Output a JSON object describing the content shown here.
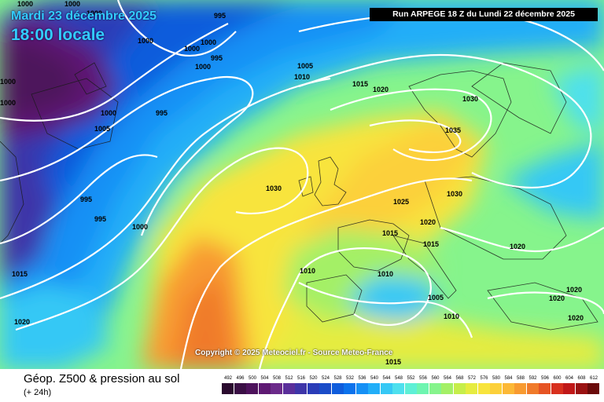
{
  "title": {
    "date": "Mardi 23 décembre 2025",
    "time": "18:00 locale"
  },
  "run_info": "Run ARPEGE 18 Z du Lundi 22 décembre 2025",
  "copyright": "Copyright © 2025 Meteociel.fr - Source Meteo-France",
  "footer": {
    "title": "Géop. Z500 & pression au sol",
    "subtitle": "(+ 24h)"
  },
  "scale": {
    "values": [
      "492",
      "496",
      "500",
      "504",
      "508",
      "512",
      "516",
      "520",
      "524",
      "528",
      "532",
      "536",
      "540",
      "544",
      "548",
      "552",
      "556",
      "560",
      "564",
      "568",
      "572",
      "576",
      "580",
      "584",
      "588",
      "592",
      "596",
      "600",
      "604",
      "608",
      "612"
    ],
    "colors": [
      "#2a0a2e",
      "#3a0f45",
      "#4d125c",
      "#5e1973",
      "#6b2a8a",
      "#5a2e9a",
      "#3e35a8",
      "#2a3cb8",
      "#1a4cc8",
      "#0f5cdc",
      "#0c72ec",
      "#1590f5",
      "#22aef8",
      "#36c8f5",
      "#4ee0ee",
      "#5ef0d6",
      "#6ef5b0",
      "#86f48c",
      "#a4f066",
      "#c6ee4a",
      "#e6ec40",
      "#f8e43c",
      "#fcd03a",
      "#fcb836",
      "#f89a30",
      "#f07a2a",
      "#e65424",
      "#d8301e",
      "#c01818",
      "#9a1212",
      "#6a0a0a"
    ]
  },
  "pressure_labels": [
    "1000",
    "1000",
    "995",
    "1000",
    "1000",
    "995",
    "1000",
    "1000",
    "1000",
    "1000",
    "1000",
    "1005",
    "1000",
    "995",
    "1005",
    "1010",
    "1015",
    "1020",
    "1030",
    "1035",
    "1030",
    "1030",
    "1025",
    "1020",
    "1015",
    "1015",
    "1020",
    "1010",
    "1010",
    "1005",
    "1010",
    "995",
    "995",
    "1000",
    "1015",
    "1020",
    "1020",
    "1020",
    "1020",
    "1015"
  ],
  "colors": {
    "run_box_bg": "#000000",
    "title_color": "#33ccff"
  }
}
